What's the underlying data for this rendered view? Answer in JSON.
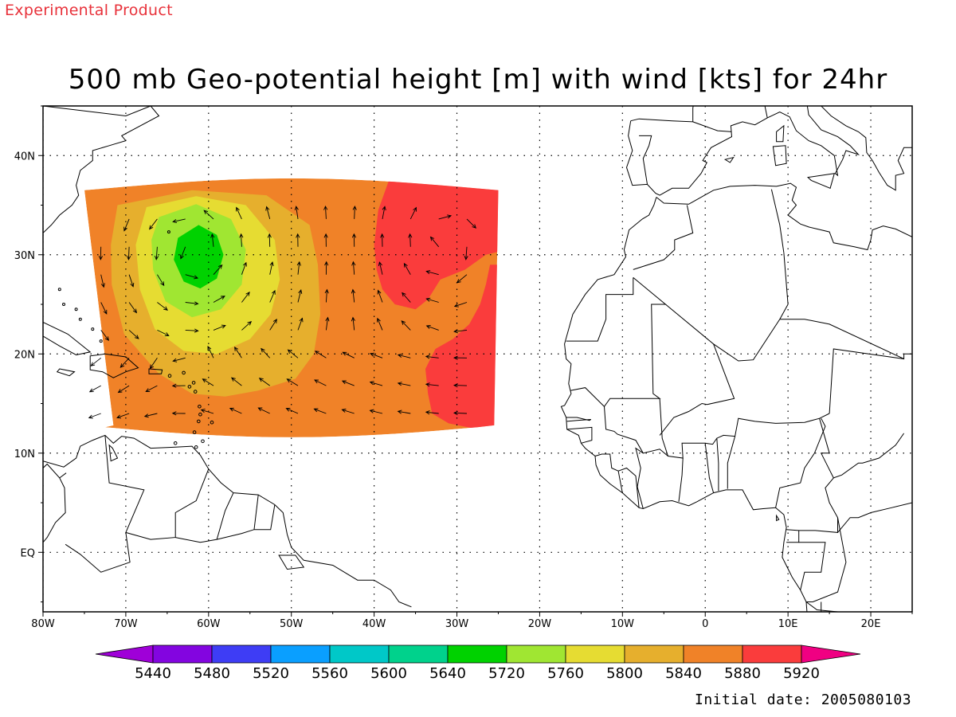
{
  "header": {
    "tag": "Experimental Product",
    "title": "500 mb Geo-potential height [m] with wind [kts] for 24hr"
  },
  "footer": {
    "initial_date": "Initial date: 2005080103"
  },
  "map": {
    "lon_range": [
      -80,
      25
    ],
    "lat_range": [
      -6,
      45
    ],
    "x_ticks": [
      {
        "lon": -80,
        "label": "80W"
      },
      {
        "lon": -70,
        "label": "70W"
      },
      {
        "lon": -60,
        "label": "60W"
      },
      {
        "lon": -50,
        "label": "50W"
      },
      {
        "lon": -40,
        "label": "40W"
      },
      {
        "lon": -30,
        "label": "30W"
      },
      {
        "lon": -20,
        "label": "20W"
      },
      {
        "lon": -10,
        "label": "10W"
      },
      {
        "lon": 0,
        "label": "0"
      },
      {
        "lon": 10,
        "label": "10E"
      },
      {
        "lon": 20,
        "label": "20E"
      }
    ],
    "y_ticks": [
      {
        "lat": 40,
        "label": "40N"
      },
      {
        "lat": 30,
        "label": "30N"
      },
      {
        "lat": 20,
        "label": "20N"
      },
      {
        "lat": 10,
        "label": "10N"
      },
      {
        "lat": 0,
        "label": "EQ"
      }
    ],
    "grid": true,
    "domain_lon_west": -75,
    "domain_lon_east": -25,
    "domain_lat_south": 12.5,
    "domain_lat_north": 36.5,
    "low_center": {
      "lon": -62,
      "lat": 30.5,
      "value": 5720
    },
    "high_center": {
      "lon": -33,
      "lat": 32,
      "value": 5920
    },
    "colorbar": {
      "labels": [
        "5440",
        "5480",
        "5520",
        "5560",
        "5600",
        "5640",
        "5720",
        "5760",
        "5800",
        "5840",
        "5880",
        "5920"
      ],
      "colors": [
        "#9f00d8",
        "#8305e0",
        "#3e3df5",
        "#0a9fff",
        "#00c8c8",
        "#00d28c",
        "#00d200",
        "#a0e632",
        "#e6dc32",
        "#e6af2d",
        "#f08228",
        "#fa3c3c",
        "#f00082"
      ]
    }
  },
  "chart_data": {
    "type": "heatmap",
    "title": "500 mb Geo-potential height [m] with wind [kts] for 24hr",
    "field": "500 mb geopotential height",
    "units": "m",
    "levels": [
      5440,
      5480,
      5520,
      5560,
      5600,
      5640,
      5720,
      5760,
      5800,
      5840,
      5880,
      5920
    ],
    "xlim": [
      -80,
      25
    ],
    "ylim": [
      -6,
      45
    ],
    "grid": true,
    "features": [
      {
        "kind": "low",
        "lon": -62,
        "lat": 30.5,
        "min_level": 5720
      },
      {
        "kind": "high",
        "lon": -33,
        "lat": 32,
        "min_level": 5920
      }
    ]
  }
}
